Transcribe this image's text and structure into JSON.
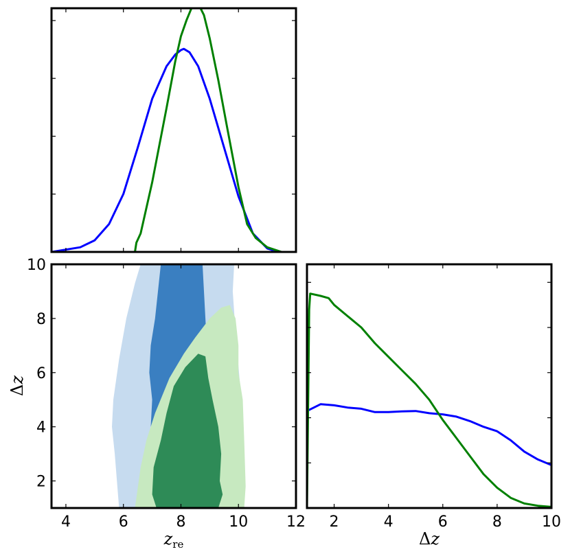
{
  "chart_data": [
    {
      "type": "line",
      "panel": "top-left: marginal distribution of z_re",
      "xlim": [
        3.5,
        12
      ],
      "ylim": [
        0,
        1.05
      ],
      "y_ticks_labeled": false,
      "series": [
        {
          "color": "#0000ff",
          "x": [
            3.5,
            4.5,
            5.0,
            5.5,
            6.0,
            6.5,
            7.0,
            7.5,
            7.8,
            8.0,
            8.1,
            8.3,
            8.6,
            9.0,
            9.5,
            10.0,
            10.5,
            11.0,
            11.4
          ],
          "values": [
            0.0,
            0.02,
            0.05,
            0.12,
            0.25,
            0.45,
            0.66,
            0.8,
            0.85,
            0.87,
            0.875,
            0.86,
            0.8,
            0.66,
            0.45,
            0.24,
            0.08,
            0.015,
            0.0
          ]
        },
        {
          "color": "#008000",
          "x": [
            6.4,
            6.45,
            6.6,
            7.0,
            7.5,
            7.8,
            8.0,
            8.2,
            8.4,
            8.5,
            8.6,
            8.8,
            9.0,
            9.3,
            9.6,
            10.0,
            10.3,
            10.6,
            11.0,
            11.5
          ],
          "values": [
            0.0,
            0.04,
            0.08,
            0.3,
            0.62,
            0.82,
            0.93,
            1.0,
            1.06,
            1.08,
            1.07,
            1.02,
            0.92,
            0.74,
            0.54,
            0.28,
            0.12,
            0.06,
            0.02,
            0.0
          ]
        }
      ]
    },
    {
      "type": "contour",
      "panel": "bottom-left: joint constraints",
      "xlim": [
        3.5,
        12
      ],
      "ylim": [
        1,
        10
      ],
      "x_ticks": [
        4,
        6,
        8,
        10,
        12
      ],
      "y_ticks": [
        2,
        4,
        6,
        8,
        10
      ],
      "xlabel": "z_re",
      "ylabel": "Δz",
      "regions": [
        {
          "color": "#c6dbef",
          "points": [
            [
              5.85,
              1
            ],
            [
              5.7,
              3
            ],
            [
              5.6,
              4
            ],
            [
              5.65,
              5
            ],
            [
              5.85,
              6.5
            ],
            [
              6.1,
              8
            ],
            [
              6.4,
              9.3
            ],
            [
              6.6,
              10
            ],
            [
              9.85,
              10
            ],
            [
              9.8,
              9
            ],
            [
              9.9,
              7.5
            ],
            [
              10.1,
              5
            ],
            [
              10.2,
              3
            ],
            [
              10.2,
              1
            ]
          ]
        },
        {
          "color": "#3a7fc1",
          "points": [
            [
              7.2,
              1
            ],
            [
              7.1,
              2
            ],
            [
              7.0,
              3
            ],
            [
              6.95,
              4
            ],
            [
              7.0,
              5
            ],
            [
              6.9,
              6
            ],
            [
              6.95,
              7
            ],
            [
              7.1,
              8
            ],
            [
              7.2,
              9
            ],
            [
              7.3,
              10
            ],
            [
              8.75,
              10
            ],
            [
              8.8,
              9
            ],
            [
              8.85,
              8
            ],
            [
              8.9,
              7
            ],
            [
              8.95,
              6
            ],
            [
              9.05,
              5
            ],
            [
              9.15,
              3.5
            ],
            [
              9.3,
              2.5
            ],
            [
              9.3,
              1
            ]
          ]
        },
        {
          "color": "#c7e9c0",
          "points": [
            [
              6.4,
              1
            ],
            [
              6.6,
              2.5
            ],
            [
              6.8,
              3.5
            ],
            [
              7.1,
              4.5
            ],
            [
              7.6,
              5.8
            ],
            [
              8.1,
              6.7
            ],
            [
              8.5,
              7.3
            ],
            [
              9.0,
              8.0
            ],
            [
              9.4,
              8.4
            ],
            [
              9.7,
              8.5
            ],
            [
              9.9,
              8.0
            ],
            [
              10.0,
              7.0
            ],
            [
              10.0,
              6.0
            ],
            [
              10.15,
              5.0
            ],
            [
              10.2,
              3.5
            ],
            [
              10.25,
              1.8
            ],
            [
              10.2,
              1
            ]
          ]
        },
        {
          "color": "#2e8b57",
          "points": [
            [
              7.15,
              1
            ],
            [
              7.0,
              1.5
            ],
            [
              7.05,
              2.5
            ],
            [
              7.3,
              3.5
            ],
            [
              7.5,
              4.5
            ],
            [
              7.75,
              5.5
            ],
            [
              8.15,
              6.2
            ],
            [
              8.6,
              6.7
            ],
            [
              8.85,
              6.6
            ],
            [
              8.95,
              5.8
            ],
            [
              9.1,
              5.0
            ],
            [
              9.3,
              4.0
            ],
            [
              9.4,
              3.0
            ],
            [
              9.35,
              2.0
            ],
            [
              9.45,
              1.5
            ],
            [
              9.3,
              1
            ]
          ]
        }
      ]
    },
    {
      "type": "line",
      "panel": "bottom-right: marginal distribution of Δz",
      "xlim": [
        1,
        10
      ],
      "ylim": [
        0,
        1.08
      ],
      "x_ticks": [
        2,
        4,
        6,
        8,
        10
      ],
      "xlabel": "Δz",
      "y_ticks_labeled": false,
      "series": [
        {
          "color": "#0000ff",
          "x": [
            1.0,
            1.5,
            2.0,
            2.5,
            3.0,
            3.5,
            4.0,
            4.5,
            5.0,
            5.5,
            6.0,
            6.5,
            7.0,
            7.5,
            8.0,
            8.5,
            9.0,
            9.5,
            10.0
          ],
          "values": [
            0.43,
            0.46,
            0.455,
            0.445,
            0.44,
            0.425,
            0.425,
            0.428,
            0.43,
            0.42,
            0.415,
            0.405,
            0.385,
            0.36,
            0.34,
            0.3,
            0.25,
            0.215,
            0.19
          ]
        },
        {
          "color": "#008000",
          "x": [
            1.0,
            1.08,
            1.12,
            1.5,
            1.8,
            2.0,
            2.5,
            3.0,
            3.5,
            4.0,
            4.5,
            5.0,
            5.5,
            6.0,
            6.5,
            7.0,
            7.5,
            8.0,
            8.5,
            9.0,
            9.5,
            10.0
          ],
          "values": [
            0.0,
            0.88,
            0.95,
            0.94,
            0.93,
            0.9,
            0.85,
            0.8,
            0.73,
            0.67,
            0.61,
            0.55,
            0.48,
            0.39,
            0.31,
            0.23,
            0.15,
            0.09,
            0.045,
            0.02,
            0.01,
            0.005
          ]
        }
      ]
    }
  ]
}
